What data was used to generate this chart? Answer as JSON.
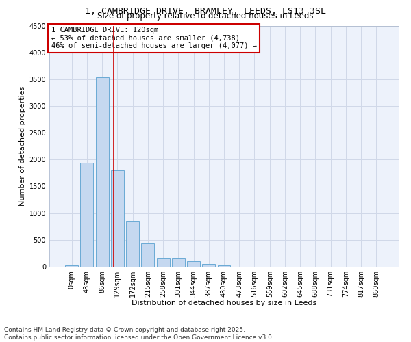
{
  "title_line1": "1, CAMBRIDGE DRIVE, BRAMLEY, LEEDS, LS13 3SL",
  "title_line2": "Size of property relative to detached houses in Leeds",
  "xlabel": "Distribution of detached houses by size in Leeds",
  "ylabel": "Number of detached properties",
  "categories": [
    "0sqm",
    "43sqm",
    "86sqm",
    "129sqm",
    "172sqm",
    "215sqm",
    "258sqm",
    "301sqm",
    "344sqm",
    "387sqm",
    "430sqm",
    "473sqm",
    "516sqm",
    "559sqm",
    "602sqm",
    "645sqm",
    "688sqm",
    "731sqm",
    "774sqm",
    "817sqm",
    "860sqm"
  ],
  "values": [
    30,
    1940,
    3530,
    1800,
    850,
    450,
    165,
    160,
    100,
    55,
    30,
    0,
    0,
    0,
    0,
    0,
    0,
    0,
    0,
    0,
    0
  ],
  "bar_color": "#c5d8f0",
  "bar_edge_color": "#6aaad4",
  "vline_x_index": 2.78,
  "vline_color": "#cc0000",
  "annotation_text": "1 CAMBRIDGE DRIVE: 120sqm\n← 53% of detached houses are smaller (4,738)\n46% of semi-detached houses are larger (4,077) →",
  "annotation_box_color": "#cc0000",
  "annotation_bg": "white",
  "ylim": [
    0,
    4500
  ],
  "yticks": [
    0,
    500,
    1000,
    1500,
    2000,
    2500,
    3000,
    3500,
    4000,
    4500
  ],
  "grid_color": "#d0d8e8",
  "bg_color": "#edf2fb",
  "footer_line1": "Contains HM Land Registry data © Crown copyright and database right 2025.",
  "footer_line2": "Contains public sector information licensed under the Open Government Licence v3.0.",
  "title_fontsize": 9.5,
  "subtitle_fontsize": 8.5,
  "axis_label_fontsize": 8,
  "tick_fontsize": 7,
  "annotation_fontsize": 7.5,
  "footer_fontsize": 6.5
}
